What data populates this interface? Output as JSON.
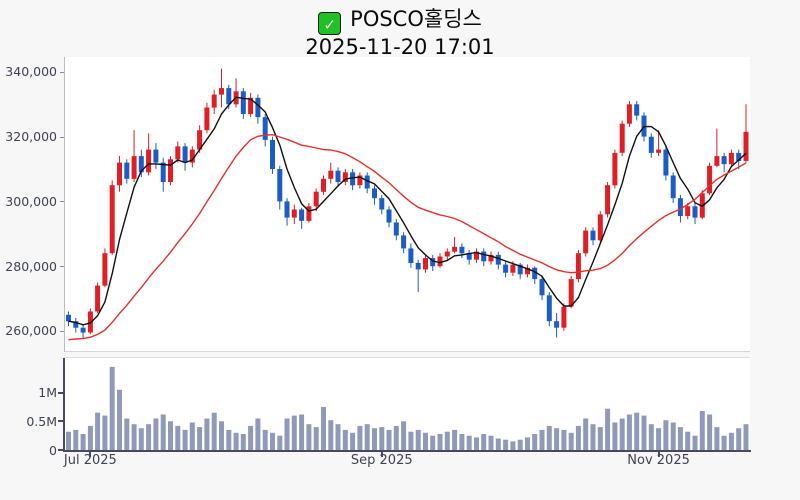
{
  "header": {
    "checkbox_glyph": "✓",
    "title": "POSCO홀딩스",
    "subtitle": "2025-11-20 17:01"
  },
  "colors": {
    "up": "#e01e25",
    "down": "#1b5cc6",
    "volume": "#9099b8",
    "ma_short": "#111111",
    "ma_long": "#e8302a",
    "background": "#f7f7f7",
    "plot_background": "#ffffff",
    "axis_text": "#3f4254",
    "checkbox_green": "#1fc125"
  },
  "chart_data": {
    "type": "candlestick+volume",
    "title": "POSCO홀딩스",
    "timestamp": "2025-11-20 17:01",
    "legend_position": "none",
    "grid": false,
    "price_axis": {
      "range": [
        253500,
        344600
      ],
      "ticks": [
        {
          "value": 340000,
          "label": "340,000"
        },
        {
          "value": 320000,
          "label": "320,000"
        },
        {
          "value": 300000,
          "label": "300,000"
        },
        {
          "value": 280000,
          "label": "280,000"
        },
        {
          "value": 260000,
          "label": "260,000"
        }
      ]
    },
    "volume_axis": {
      "range": [
        0,
        1605000
      ],
      "ticks": [
        {
          "value": 1000000,
          "label": "1M"
        },
        {
          "value": 500000,
          "label": "0.5M"
        },
        {
          "value": 0,
          "label": "0"
        }
      ]
    },
    "x_ticks": [
      {
        "index": 3,
        "label": "Jul 2025"
      },
      {
        "index": 43,
        "label": "Sep 2025"
      },
      {
        "index": 81,
        "label": "Nov 2025"
      }
    ],
    "overlays": [
      {
        "name": "ma-short",
        "window": 5,
        "pad": null,
        "color": "#111111"
      },
      {
        "name": "ma-long",
        "window": 20,
        "pad": 257000,
        "color": "#e8302a"
      }
    ],
    "candles_format": [
      "open",
      "high",
      "low",
      "close",
      "volume"
    ],
    "candles": [
      [
        265000,
        266000,
        261500,
        263000,
        320000
      ],
      [
        263000,
        264000,
        259500,
        261000,
        350000
      ],
      [
        261000,
        262000,
        257500,
        259500,
        280000
      ],
      [
        259500,
        267000,
        259000,
        266000,
        420000
      ],
      [
        266000,
        275000,
        265500,
        274000,
        650000
      ],
      [
        274000,
        285500,
        273500,
        284000,
        600000
      ],
      [
        284000,
        306500,
        283500,
        305000,
        1450000
      ],
      [
        305000,
        314000,
        303000,
        312000,
        1050000
      ],
      [
        312000,
        313000,
        305500,
        307000,
        550000
      ],
      [
        307000,
        322000,
        306000,
        314000,
        450000
      ],
      [
        314000,
        316000,
        307500,
        309000,
        380000
      ],
      [
        309000,
        321000,
        308000,
        316000,
        450000
      ],
      [
        316000,
        318000,
        310000,
        312000,
        550000
      ],
      [
        312000,
        313500,
        303000,
        306000,
        620000
      ],
      [
        306000,
        314000,
        305000,
        313000,
        500000
      ],
      [
        313000,
        318500,
        312000,
        317000,
        420000
      ],
      [
        317000,
        318000,
        309500,
        312000,
        350000
      ],
      [
        312000,
        317000,
        310500,
        316000,
        480000
      ],
      [
        316000,
        323500,
        315000,
        322000,
        400000
      ],
      [
        322000,
        330500,
        321000,
        329000,
        550000
      ],
      [
        329000,
        334500,
        327000,
        333000,
        650000
      ],
      [
        333000,
        341000,
        329000,
        335000,
        500000
      ],
      [
        335000,
        336000,
        328500,
        330000,
        350000
      ],
      [
        330000,
        338000,
        329000,
        334000,
        300000
      ],
      [
        334000,
        335000,
        325500,
        327000,
        280000
      ],
      [
        327000,
        333500,
        326000,
        332000,
        420000
      ],
      [
        332000,
        333000,
        324000,
        326000,
        550000
      ],
      [
        326000,
        327000,
        317000,
        319000,
        350000
      ],
      [
        319000,
        320000,
        308500,
        310000,
        300000
      ],
      [
        310000,
        311000,
        297500,
        300000,
        250000
      ],
      [
        300000,
        301000,
        292500,
        295000,
        550000
      ],
      [
        295000,
        299000,
        293000,
        297500,
        600000
      ],
      [
        297500,
        298000,
        291500,
        294000,
        620000
      ],
      [
        294000,
        299500,
        293500,
        298500,
        450000
      ],
      [
        298500,
        304000,
        297000,
        303000,
        400000
      ],
      [
        303000,
        308000,
        302000,
        307000,
        750000
      ],
      [
        307000,
        312000,
        305500,
        309500,
        520000
      ],
      [
        309500,
        310500,
        304500,
        306000,
        450000
      ],
      [
        306000,
        310000,
        305000,
        309000,
        350000
      ],
      [
        309000,
        310000,
        303500,
        305000,
        300000
      ],
      [
        305000,
        309000,
        304000,
        308000,
        420000
      ],
      [
        308000,
        309000,
        302500,
        304000,
        450000
      ],
      [
        304000,
        305000,
        299000,
        301000,
        380000
      ],
      [
        301000,
        302000,
        296000,
        297500,
        400000
      ],
      [
        297500,
        298500,
        292000,
        293500,
        350000
      ],
      [
        293500,
        294500,
        288000,
        289500,
        420000
      ],
      [
        289500,
        290500,
        284000,
        285500,
        500000
      ],
      [
        285500,
        287000,
        279500,
        281000,
        320000
      ],
      [
        281000,
        282000,
        272000,
        279000,
        350000
      ],
      [
        279000,
        283500,
        278000,
        282500,
        300000
      ],
      [
        282500,
        283500,
        278500,
        280000,
        250000
      ],
      [
        280000,
        284000,
        279500,
        283000,
        280000
      ],
      [
        283000,
        285500,
        282000,
        284500,
        320000
      ],
      [
        284500,
        289000,
        284000,
        286000,
        350000
      ],
      [
        286000,
        287000,
        282500,
        284000,
        280000
      ],
      [
        284000,
        285000,
        280500,
        282000,
        250000
      ],
      [
        282000,
        285500,
        281000,
        284500,
        220000
      ],
      [
        284500,
        285500,
        280000,
        281500,
        280000
      ],
      [
        281500,
        284500,
        280500,
        283500,
        250000
      ],
      [
        283500,
        284500,
        279000,
        280500,
        200000
      ],
      [
        280500,
        281500,
        276500,
        278000,
        180000
      ],
      [
        278000,
        281500,
        277000,
        280500,
        150000
      ],
      [
        280500,
        281000,
        276000,
        277500,
        180000
      ],
      [
        277500,
        280500,
        276500,
        279500,
        220000
      ],
      [
        279500,
        280000,
        274500,
        276000,
        280000
      ],
      [
        276000,
        277000,
        269500,
        271000,
        350000
      ],
      [
        271000,
        272000,
        261500,
        263000,
        420000
      ],
      [
        263000,
        265500,
        258000,
        261000,
        380000
      ],
      [
        261000,
        268500,
        260000,
        267500,
        350000
      ],
      [
        267500,
        277000,
        267000,
        276000,
        300000
      ],
      [
        276000,
        285000,
        275000,
        284000,
        420000
      ],
      [
        284000,
        292000,
        283000,
        291000,
        550000
      ],
      [
        291000,
        292000,
        286500,
        288000,
        450000
      ],
      [
        288000,
        297000,
        287000,
        296000,
        400000
      ],
      [
        296000,
        306000,
        295000,
        305000,
        720000
      ],
      [
        305000,
        316000,
        304000,
        315000,
        480000
      ],
      [
        315000,
        325000,
        314000,
        324000,
        550000
      ],
      [
        324000,
        331000,
        323000,
        330000,
        620000
      ],
      [
        330000,
        331000,
        325000,
        326500,
        650000
      ],
      [
        326500,
        327500,
        318500,
        320000,
        600000
      ],
      [
        320000,
        321000,
        313500,
        315000,
        450000
      ],
      [
        315000,
        322000,
        314000,
        316000,
        380000
      ],
      [
        316000,
        317000,
        306500,
        308000,
        520000
      ],
      [
        308000,
        309000,
        299500,
        301000,
        480000
      ],
      [
        301000,
        302000,
        293500,
        295500,
        400000
      ],
      [
        295500,
        299500,
        294500,
        298500,
        320000
      ],
      [
        298500,
        299500,
        293000,
        295000,
        250000
      ],
      [
        295000,
        303500,
        294500,
        302500,
        680000
      ],
      [
        302500,
        312000,
        302000,
        311000,
        620000
      ],
      [
        311000,
        322500,
        310500,
        314000,
        400000
      ],
      [
        314000,
        315000,
        309000,
        311500,
        250000
      ],
      [
        311500,
        316000,
        310500,
        315000,
        300000
      ],
      [
        315000,
        316000,
        310000,
        312500,
        380000
      ],
      [
        312500,
        330000,
        312000,
        321500,
        450000
      ]
    ]
  }
}
